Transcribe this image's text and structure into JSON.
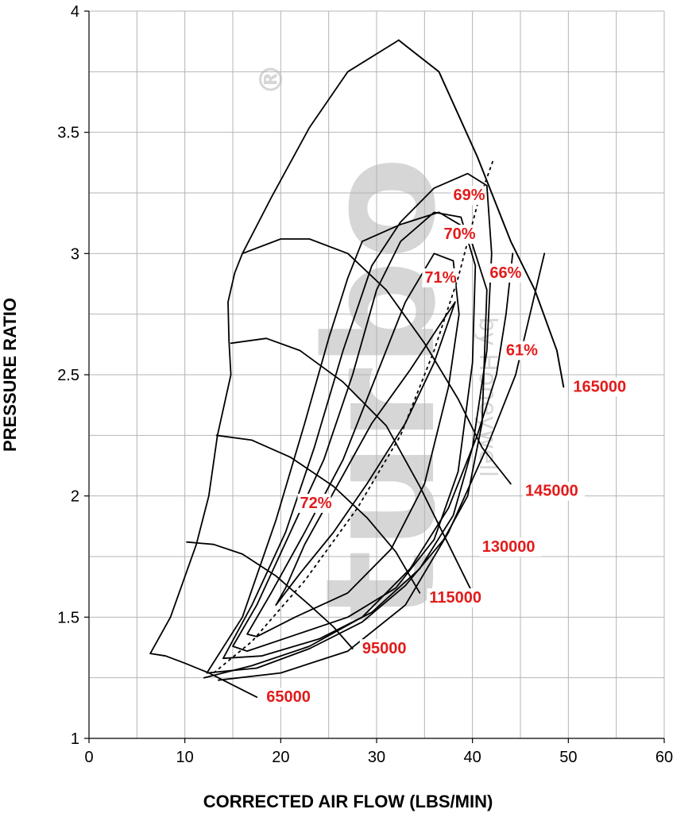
{
  "chart_data": {
    "type": "line",
    "title": "",
    "xlabel": "CORRECTED AIR FLOW (LBS/MIN)",
    "ylabel": "PRESSURE RATIO",
    "xlim": [
      0,
      60
    ],
    "ylim": [
      1,
      4
    ],
    "x_ticks": [
      "0",
      "10",
      "20",
      "30",
      "40",
      "50",
      "60"
    ],
    "y_ticks": [
      "1",
      "1.5",
      "2",
      "2.5",
      "3",
      "3.5",
      "4"
    ],
    "grid": true,
    "watermark": {
      "text": "turbo",
      "sub_text": "by Honeywell",
      "symbol": "®"
    },
    "boundary": {
      "surge_side": [
        [
          6.4,
          1.35
        ],
        [
          8.5,
          1.5
        ],
        [
          11.2,
          1.8
        ],
        [
          12.5,
          2.0
        ],
        [
          13.4,
          2.25
        ],
        [
          14.8,
          2.5
        ],
        [
          14.6,
          2.64
        ],
        [
          14.5,
          2.8
        ],
        [
          15.2,
          2.92
        ],
        [
          16.0,
          3.0
        ],
        [
          19.0,
          3.23
        ],
        [
          23.0,
          3.52
        ],
        [
          27.0,
          3.75
        ],
        [
          32.3,
          3.88
        ]
      ],
      "outer_side": [
        [
          32.3,
          3.88
        ],
        [
          36.5,
          3.75
        ],
        [
          40.5,
          3.4
        ],
        [
          44.0,
          3.05
        ],
        [
          46.5,
          2.85
        ],
        [
          48.8,
          2.6
        ],
        [
          49.5,
          2.45
        ]
      ]
    },
    "speed_lines": [
      {
        "label": "65000",
        "points": [
          [
            6.4,
            1.35
          ],
          [
            8.0,
            1.34
          ],
          [
            10.0,
            1.31
          ],
          [
            12.5,
            1.27
          ],
          [
            15.0,
            1.22
          ],
          [
            17.5,
            1.17
          ]
        ]
      },
      {
        "label": "95000",
        "points": [
          [
            10.2,
            1.81
          ],
          [
            13.0,
            1.8
          ],
          [
            16.0,
            1.76
          ],
          [
            19.5,
            1.67
          ],
          [
            23.0,
            1.55
          ],
          [
            25.5,
            1.46
          ],
          [
            27.5,
            1.37
          ]
        ]
      },
      {
        "label": "115000",
        "points": [
          [
            13.3,
            2.25
          ],
          [
            17.0,
            2.23
          ],
          [
            21.0,
            2.16
          ],
          [
            25.5,
            2.04
          ],
          [
            29.0,
            1.91
          ],
          [
            32.0,
            1.77
          ],
          [
            34.5,
            1.6
          ]
        ]
      },
      {
        "label": "130000",
        "points": [
          [
            14.8,
            2.63
          ],
          [
            18.5,
            2.65
          ],
          [
            22.0,
            2.6
          ],
          [
            26.5,
            2.47
          ],
          [
            31.0,
            2.29
          ],
          [
            34.5,
            2.04
          ],
          [
            37.5,
            1.8
          ],
          [
            40.0,
            1.6
          ]
        ]
      },
      {
        "label": "145000",
        "points": [
          [
            16.0,
            3.0
          ],
          [
            20.0,
            3.06
          ],
          [
            23.0,
            3.06
          ],
          [
            27.0,
            3.0
          ],
          [
            31.0,
            2.85
          ],
          [
            35.0,
            2.63
          ],
          [
            38.5,
            2.4
          ],
          [
            41.0,
            2.2
          ],
          [
            44.0,
            2.05
          ]
        ]
      },
      {
        "label": "165000",
        "points": [
          [
            32.3,
            3.88
          ],
          [
            36.5,
            3.75
          ],
          [
            40.5,
            3.4
          ],
          [
            44.0,
            3.05
          ],
          [
            46.5,
            2.85
          ],
          [
            48.8,
            2.6
          ],
          [
            49.5,
            2.45
          ]
        ]
      }
    ],
    "efficiency_islands": [
      {
        "label": "72%",
        "points": [
          [
            19.5,
            1.55
          ],
          [
            22.0,
            1.68
          ],
          [
            25.5,
            1.85
          ],
          [
            29.0,
            2.05
          ],
          [
            33.0,
            2.3
          ],
          [
            36.0,
            2.55
          ],
          [
            38.2,
            2.8
          ],
          [
            36.5,
            2.7
          ],
          [
            33.5,
            2.52
          ],
          [
            29.5,
            2.3
          ],
          [
            26.0,
            2.05
          ],
          [
            22.5,
            1.8
          ],
          [
            20.5,
            1.62
          ],
          [
            19.5,
            1.55
          ]
        ]
      },
      {
        "label": "71%",
        "points": [
          [
            16.5,
            1.43
          ],
          [
            19.0,
            1.6
          ],
          [
            22.5,
            1.85
          ],
          [
            26.5,
            2.15
          ],
          [
            30.0,
            2.5
          ],
          [
            33.0,
            2.8
          ],
          [
            36.0,
            3.0
          ],
          [
            38.0,
            2.97
          ],
          [
            38.6,
            2.75
          ],
          [
            37.5,
            2.45
          ],
          [
            35.0,
            2.05
          ],
          [
            31.5,
            1.78
          ],
          [
            27.0,
            1.6
          ],
          [
            21.5,
            1.5
          ],
          [
            17.5,
            1.42
          ],
          [
            16.5,
            1.43
          ]
        ]
      },
      {
        "label": "70%",
        "points": [
          [
            15.0,
            1.38
          ],
          [
            17.5,
            1.55
          ],
          [
            21.0,
            1.85
          ],
          [
            24.5,
            2.15
          ],
          [
            27.5,
            2.5
          ],
          [
            30.0,
            2.85
          ],
          [
            32.5,
            3.05
          ],
          [
            36.0,
            3.17
          ],
          [
            38.8,
            3.15
          ],
          [
            40.3,
            2.95
          ],
          [
            40.0,
            2.55
          ],
          [
            38.5,
            2.1
          ],
          [
            36.0,
            1.82
          ],
          [
            32.0,
            1.62
          ],
          [
            27.0,
            1.5
          ],
          [
            21.0,
            1.42
          ],
          [
            16.5,
            1.36
          ],
          [
            15.0,
            1.38
          ]
        ]
      },
      {
        "label": "69%",
        "points": [
          [
            14.0,
            1.33
          ],
          [
            17.0,
            1.55
          ],
          [
            20.5,
            1.85
          ],
          [
            23.5,
            2.2
          ],
          [
            26.5,
            2.6
          ],
          [
            29.5,
            2.95
          ],
          [
            32.5,
            3.13
          ],
          [
            36.0,
            3.27
          ],
          [
            39.5,
            3.33
          ],
          [
            41.5,
            3.28
          ],
          [
            42.0,
            3.0
          ],
          [
            41.5,
            2.6
          ],
          [
            40.0,
            2.2
          ],
          [
            38.0,
            1.92
          ],
          [
            34.5,
            1.7
          ],
          [
            29.5,
            1.52
          ],
          [
            24.0,
            1.41
          ],
          [
            18.0,
            1.34
          ],
          [
            14.0,
            1.33
          ]
        ]
      },
      {
        "label": "66%",
        "points": [
          [
            12.3,
            1.27
          ],
          [
            16.0,
            1.5
          ],
          [
            19.5,
            1.9
          ],
          [
            22.5,
            2.3
          ],
          [
            25.0,
            2.65
          ],
          [
            27.0,
            2.9
          ],
          [
            28.5,
            3.05
          ]
        ]
      },
      {
        "label": "66%",
        "points": [
          [
            28.5,
            3.05
          ],
          [
            32.5,
            3.12
          ],
          [
            36.5,
            3.17
          ],
          [
            39.5,
            3.1
          ],
          [
            41.5,
            2.85
          ],
          [
            41.0,
            2.3
          ],
          [
            39.5,
            2.0
          ],
          [
            37.0,
            1.82
          ],
          [
            33.0,
            1.63
          ],
          [
            28.5,
            1.48
          ],
          [
            23.0,
            1.37
          ],
          [
            17.5,
            1.29
          ],
          [
            12.3,
            1.27
          ]
        ]
      },
      {
        "label": "61%",
        "points": [
          [
            12.0,
            1.25
          ],
          [
            17.0,
            1.3
          ],
          [
            23.0,
            1.38
          ],
          [
            28.5,
            1.5
          ],
          [
            33.5,
            1.7
          ],
          [
            37.5,
            1.95
          ],
          [
            40.5,
            2.25
          ],
          [
            42.5,
            2.5
          ],
          [
            43.5,
            2.75
          ],
          [
            44.2,
            3.0
          ]
        ]
      },
      {
        "label": "61%",
        "points": [
          [
            13.5,
            1.24
          ],
          [
            20.0,
            1.27
          ],
          [
            27.0,
            1.36
          ],
          [
            33.0,
            1.55
          ],
          [
            37.5,
            1.85
          ],
          [
            41.5,
            2.2
          ],
          [
            44.5,
            2.5
          ],
          [
            46.0,
            2.75
          ],
          [
            47.5,
            3.0
          ]
        ]
      }
    ],
    "surge_reference": {
      "points": [
        [
          13.0,
          1.27
        ],
        [
          17.0,
          1.4
        ],
        [
          22.5,
          1.65
        ],
        [
          28.0,
          1.95
        ],
        [
          32.5,
          2.25
        ],
        [
          36.0,
          2.6
        ],
        [
          38.5,
          2.9
        ],
        [
          40.5,
          3.2
        ],
        [
          42.2,
          3.39
        ]
      ]
    },
    "annotations": [
      {
        "text": "69%",
        "x": 38.0,
        "y": 3.22
      },
      {
        "text": "70%",
        "x": 37.0,
        "y": 3.06
      },
      {
        "text": "71%",
        "x": 35.0,
        "y": 2.88
      },
      {
        "text": "66%",
        "x": 41.8,
        "y": 2.9
      },
      {
        "text": "61%",
        "x": 43.5,
        "y": 2.58
      },
      {
        "text": "72%",
        "x": 22.0,
        "y": 1.95
      },
      {
        "text": "165000",
        "x": 50.5,
        "y": 2.43
      },
      {
        "text": "145000",
        "x": 45.5,
        "y": 2.0
      },
      {
        "text": "130000",
        "x": 41.0,
        "y": 1.77
      },
      {
        "text": "115000",
        "x": 35.5,
        "y": 1.56
      },
      {
        "text": "95000",
        "x": 28.5,
        "y": 1.35
      },
      {
        "text": "65000",
        "x": 18.5,
        "y": 1.15
      }
    ]
  }
}
